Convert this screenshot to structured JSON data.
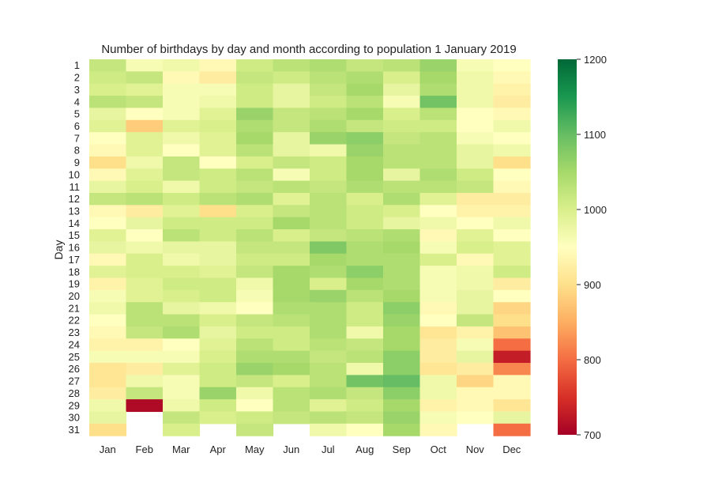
{
  "chart_data": {
    "type": "heatmap",
    "title": "Number of birthdays by day and month according to population 1 January 2019",
    "xlabel": "",
    "ylabel": "Day",
    "x_categories": [
      "Jan",
      "Feb",
      "Mar",
      "Apr",
      "May",
      "Jun",
      "Jul",
      "Aug",
      "Sep",
      "Oct",
      "Nov",
      "Dec"
    ],
    "y_categories": [
      "1",
      "2",
      "3",
      "4",
      "5",
      "6",
      "7",
      "8",
      "9",
      "10",
      "11",
      "12",
      "13",
      "14",
      "15",
      "16",
      "17",
      "18",
      "19",
      "20",
      "21",
      "22",
      "23",
      "24",
      "25",
      "26",
      "27",
      "28",
      "29",
      "30",
      "31"
    ],
    "colorbar": {
      "range": [
        700,
        1200
      ],
      "ticks": [
        700,
        800,
        900,
        1000,
        1100,
        1200
      ],
      "colormap": "RdYlGn"
    },
    "values": [
      [
        1020,
        960,
        970,
        940,
        1010,
        1030,
        1040,
        1020,
        1030,
        1060,
        960,
        950
      ],
      [
        1010,
        1020,
        940,
        920,
        1020,
        1010,
        1030,
        1040,
        1000,
        1050,
        970,
        940
      ],
      [
        1000,
        990,
        960,
        960,
        1010,
        980,
        1020,
        1050,
        980,
        1040,
        970,
        930
      ],
      [
        1030,
        1020,
        960,
        970,
        1010,
        980,
        1010,
        1030,
        960,
        1090,
        970,
        920
      ],
      [
        980,
        950,
        960,
        990,
        1060,
        1020,
        1030,
        1050,
        1000,
        1030,
        950,
        940
      ],
      [
        990,
        880,
        990,
        1000,
        1040,
        1020,
        1040,
        1020,
        1010,
        1010,
        950,
        970
      ],
      [
        950,
        990,
        970,
        990,
        1050,
        980,
        1060,
        1070,
        1020,
        1030,
        960,
        950
      ],
      [
        940,
        990,
        950,
        990,
        1030,
        980,
        970,
        1060,
        1030,
        1030,
        980,
        970
      ],
      [
        900,
        970,
        1020,
        950,
        1000,
        1020,
        1010,
        1050,
        1030,
        1030,
        980,
        900
      ],
      [
        940,
        990,
        1020,
        1010,
        1030,
        960,
        1010,
        1050,
        980,
        1040,
        1010,
        950
      ],
      [
        980,
        1000,
        970,
        1010,
        1020,
        1030,
        1020,
        1040,
        1030,
        1030,
        1020,
        940
      ],
      [
        1020,
        1030,
        1010,
        1030,
        1040,
        990,
        1030,
        1000,
        1040,
        990,
        920,
        920
      ],
      [
        940,
        920,
        990,
        900,
        1000,
        1020,
        1030,
        1010,
        1000,
        950,
        930,
        930
      ],
      [
        950,
        980,
        1010,
        1010,
        1010,
        1050,
        1030,
        1010,
        980,
        970,
        950,
        970
      ],
      [
        990,
        950,
        1030,
        1010,
        1030,
        1000,
        1020,
        1030,
        1040,
        940,
        990,
        950
      ],
      [
        980,
        970,
        980,
        980,
        1020,
        1020,
        1080,
        1040,
        1050,
        960,
        1000,
        990
      ],
      [
        940,
        1000,
        970,
        980,
        1010,
        1010,
        1050,
        1040,
        1040,
        1000,
        940,
        990
      ],
      [
        990,
        1000,
        1000,
        990,
        1020,
        1050,
        1040,
        1070,
        1040,
        960,
        970,
        1010
      ],
      [
        930,
        990,
        1010,
        1010,
        970,
        1050,
        1000,
        1050,
        1040,
        960,
        970,
        920
      ],
      [
        960,
        990,
        1000,
        1010,
        960,
        1050,
        1060,
        1030,
        1050,
        960,
        980,
        950
      ],
      [
        970,
        1030,
        980,
        970,
        950,
        1040,
        1040,
        1010,
        1070,
        940,
        980,
        890
      ],
      [
        950,
        1030,
        1030,
        1000,
        1020,
        1030,
        1040,
        1010,
        1060,
        950,
        1020,
        900
      ],
      [
        940,
        1020,
        1040,
        980,
        1010,
        1010,
        1040,
        970,
        1050,
        910,
        930,
        870
      ],
      [
        930,
        930,
        950,
        990,
        1030,
        1010,
        1030,
        1020,
        1050,
        920,
        960,
        800
      ],
      [
        960,
        960,
        960,
        1000,
        1040,
        1040,
        1020,
        1030,
        1070,
        920,
        980,
        730
      ],
      [
        910,
        920,
        990,
        1010,
        1060,
        1050,
        1030,
        970,
        1070,
        910,
        920,
        820
      ],
      [
        910,
        970,
        960,
        1010,
        1020,
        1000,
        1030,
        1090,
        1100,
        970,
        890,
        940
      ],
      [
        920,
        1020,
        960,
        1060,
        970,
        1030,
        1040,
        1020,
        1070,
        970,
        940,
        940
      ],
      [
        970,
        710,
        970,
        1010,
        950,
        1030,
        990,
        1010,
        1050,
        930,
        940,
        910
      ],
      [
        980,
        null,
        1020,
        1000,
        1010,
        1020,
        1030,
        1020,
        1060,
        960,
        950,
        980
      ],
      [
        900,
        null,
        1000,
        null,
        1020,
        null,
        970,
        950,
        1050,
        940,
        null,
        800
      ]
    ]
  }
}
